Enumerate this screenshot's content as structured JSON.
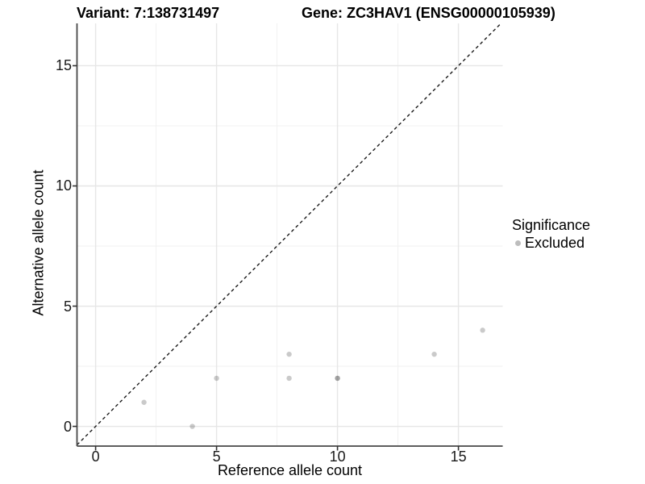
{
  "chart_data": {
    "type": "scatter",
    "title_left": "Variant: 7:138731497",
    "title_right": "Gene: ZC3HAV1 (ENSG00000105939)",
    "xlabel": "Reference allele count",
    "ylabel": "Alternative allele count",
    "x_ticks": [
      0,
      5,
      10,
      15
    ],
    "y_ticks": [
      0,
      5,
      10,
      15
    ],
    "xlim": [
      -0.77,
      16.83
    ],
    "ylim": [
      -0.82,
      16.76
    ],
    "grid": {
      "major": true,
      "minor": true
    },
    "reference_line": {
      "slope": 1,
      "intercept": 0,
      "style": "dashed"
    },
    "legend": {
      "title": "Significance",
      "position": "right",
      "items": [
        {
          "label": "Excluded",
          "marker": "circle",
          "color": "#bdbdbd"
        }
      ]
    },
    "series": [
      {
        "name": "Excluded",
        "point_color": "rgba(64,64,64,0.28)",
        "points": [
          {
            "x": 2,
            "y": 1
          },
          {
            "x": 4,
            "y": 0
          },
          {
            "x": 5,
            "y": 2
          },
          {
            "x": 8,
            "y": 2
          },
          {
            "x": 8,
            "y": 3
          },
          {
            "x": 10,
            "y": 2
          },
          {
            "x": 10,
            "y": 2
          },
          {
            "x": 14,
            "y": 3
          },
          {
            "x": 16,
            "y": 4
          }
        ],
        "note": "two overlapping points at (10,2) render darker"
      }
    ],
    "colors": {
      "background": "#ffffff",
      "grid_major": "#e6e6e6",
      "grid_minor": "#f1f1f1",
      "axis_line": "#474747",
      "tick_mark": "#333333",
      "reference_line": "#1a1a1a",
      "text": "#000000"
    }
  }
}
